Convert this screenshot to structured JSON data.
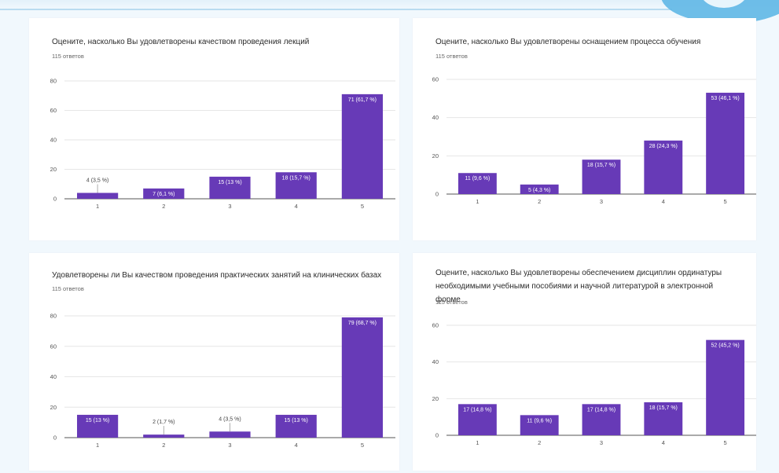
{
  "theme": {
    "bar_color": "#673ab7",
    "grid_color": "#e6e6e6",
    "background": "#f1f8fd"
  },
  "chart_data": [
    {
      "type": "bar",
      "title": "Оцените, насколько Вы удовлетворены качеством проведения лекций",
      "subtitle": "115 ответов",
      "categories": [
        "1",
        "2",
        "3",
        "4",
        "5"
      ],
      "values": [
        4,
        7,
        15,
        18,
        71
      ],
      "data_labels": [
        "4 (3,5 %)",
        "7 (6,1 %)",
        "15 (13 %)",
        "18 (15,7 %)",
        "71 (61,7 %)"
      ],
      "yticks": [
        "0",
        "20",
        "40",
        "60",
        "80"
      ],
      "ylim": [
        0,
        80
      ],
      "grid": true
    },
    {
      "type": "bar",
      "title": "Оцените, насколько Вы удовлетворены оснащением процесса обучения",
      "subtitle": "115 ответов",
      "categories": [
        "1",
        "2",
        "3",
        "4",
        "5"
      ],
      "values": [
        11,
        5,
        18,
        28,
        53
      ],
      "data_labels": [
        "11 (9,6 %)",
        "5 (4,3 %)",
        "18 (15,7 %)",
        "28 (24,3 %)",
        "53 (46,1 %)"
      ],
      "yticks": [
        "0",
        "20",
        "40",
        "60"
      ],
      "ylim": [
        0,
        60
      ],
      "grid": true
    },
    {
      "type": "bar",
      "title": "Удовлетворены ли Вы качеством проведения практических занятий на клинических базах",
      "subtitle": "115 ответов",
      "categories": [
        "1",
        "2",
        "3",
        "4",
        "5"
      ],
      "values": [
        15,
        2,
        4,
        15,
        79
      ],
      "data_labels": [
        "15 (13 %)",
        "2 (1,7 %)",
        "4 (3,5 %)",
        "15 (13 %)",
        "79 (68,7 %)"
      ],
      "yticks": [
        "0",
        "20",
        "40",
        "60",
        "80"
      ],
      "ylim": [
        0,
        80
      ],
      "grid": true
    },
    {
      "type": "bar",
      "title": "Оцените, насколько Вы удовлетворены обеспечением дисциплин ординатуры необходимыми учебными пособиями и научной литературой в электронной форме",
      "subtitle": "115 ответов",
      "categories": [
        "1",
        "2",
        "3",
        "4",
        "5"
      ],
      "values": [
        17,
        11,
        17,
        18,
        52
      ],
      "data_labels": [
        "17 (14,8 %)",
        "11 (9,6 %)",
        "17 (14,8 %)",
        "18 (15,7 %)",
        "52 (45,2 %)"
      ],
      "yticks": [
        "0",
        "20",
        "40",
        "60"
      ],
      "ylim": [
        0,
        60
      ],
      "grid": true
    }
  ]
}
